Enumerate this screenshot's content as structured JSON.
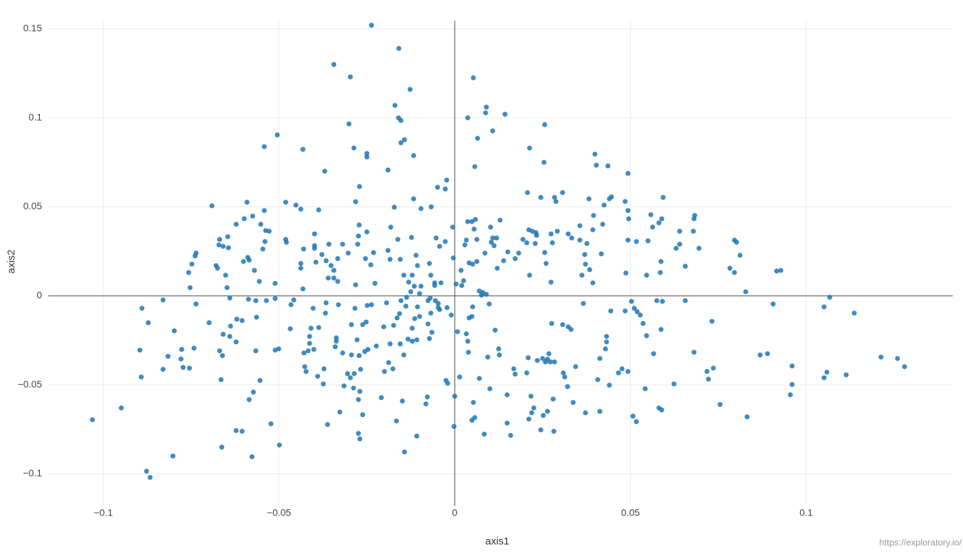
{
  "chart_data": {
    "type": "scatter",
    "x_label": "axis1",
    "y_label": "axis2",
    "watermark": "https://exploratory.io/",
    "color": "#1f77b4",
    "grid": true,
    "zeroline": true,
    "xlim": [
      -0.1157,
      0.1417
    ],
    "ylim": [
      -0.118,
      0.1546
    ],
    "xticks": [
      {
        "value": -0.1,
        "label": "−0.1"
      },
      {
        "value": -0.05,
        "label": "−0.05"
      },
      0,
      0.05,
      0.1
    ],
    "yticks": [
      {
        "value": -0.1,
        "label": "−0.1"
      },
      {
        "value": -0.05,
        "label": "−0.05"
      },
      0,
      0.05,
      0.1,
      0.15
    ],
    "x": [
      -0.1031,
      -0.0949,
      -0.0877,
      -0.0867,
      -0.0802,
      -0.0237,
      -0.0159,
      -0.0344,
      -0.0297,
      -0.0127,
      0.0053,
      -0.017,
      -0.016,
      -0.0153,
      0.0088,
      0.009,
      0.0143,
      0.0108,
      0.0037,
      -0.0301,
      0.0256,
      -0.0505,
      -0.0542,
      -0.0432,
      -0.0287,
      -0.025,
      -0.025,
      -0.0153,
      -0.0143,
      -0.0117,
      0.0065,
      0.0213,
      0.0254,
      0.0399,
      0.0057,
      0.0403,
      0.0436,
      -0.019,
      -0.037,
      0.0493,
      -0.0271,
      -0.0023,
      -0.0049,
      -0.0027,
      -0.0591,
      -0.0691,
      -0.0481,
      -0.0452,
      -0.0438,
      -0.0387,
      -0.0282,
      -0.0172,
      -0.0117,
      -0.0096,
      -0.0067,
      0.0207,
      0.0245,
      0.0284,
      0.0307,
      0.0288,
      0.0382,
      0.0446,
      0.044,
      0.0425,
      0.0485,
      0.0493,
      0.0558,
      0.0593,
      -0.0542,
      -0.0575,
      -0.0599,
      -0.0622,
      -0.0552,
      -0.0669,
      -0.0646,
      -0.0671,
      -0.0659,
      -0.0644,
      -0.0679,
      -0.0675,
      -0.0736,
      -0.0739,
      -0.0748,
      -0.0757,
      -0.0753,
      -0.0652,
      -0.0648,
      -0.0589,
      -0.0601,
      -0.0585,
      -0.057,
      -0.0556,
      -0.0538,
      -0.0528,
      -0.054,
      -0.0546,
      -0.0481,
      -0.0479,
      -0.043,
      -0.0399,
      -0.0399,
      -0.0399,
      -0.0438,
      -0.0438,
      -0.0395,
      -0.0432,
      -0.0378,
      -0.0358,
      -0.0319,
      -0.0366,
      -0.0352,
      -0.0344,
      -0.036,
      -0.0344,
      -0.0333,
      -0.0282,
      -0.0333,
      -0.0303,
      -0.0276,
      -0.0272,
      -0.0274,
      -0.025,
      -0.0254,
      -0.0231,
      -0.0239,
      -0.0227,
      -0.0182,
      -0.0162,
      -0.0184,
      -0.019,
      -0.0155,
      -0.011,
      -0.0106,
      -0.0123,
      -0.0121,
      -0.0145,
      -0.0131,
      -0.0053,
      -0.0027,
      -0.0043,
      -0.0072,
      -0.0068,
      -0.0057,
      -0.0057,
      -0.0039,
      -0.0004,
      -0.0006,
      0.0004,
      0.002,
      0.0029,
      0.0033,
      0.0037,
      0.0049,
      0.0059,
      0.0055,
      0.0018,
      0.0025,
      0.0041,
      0.0051,
      0.0063,
      0.0063,
      0.0086,
      0.0102,
      0.0108,
      0.0104,
      0.0112,
      0.0129,
      0.0119,
      0.0121,
      0.0139,
      0.0151,
      0.0172,
      0.0182,
      0.0194,
      0.0205,
      0.0211,
      0.0221,
      0.0231,
      0.0233,
      0.0229,
      0.0213,
      0.0256,
      0.026,
      0.0274,
      0.0292,
      0.0278,
      0.0274,
      0.0323,
      0.0333,
      0.0356,
      0.0356,
      0.0376,
      0.037,
      0.0417,
      0.0372,
      0.0384,
      0.0362,
      0.0393,
      0.0395,
      0.0421,
      0.0393,
      0.0495,
      0.0493,
      0.0517,
      0.055,
      0.0563,
      0.0581,
      0.0589,
      0.064,
      0.0679,
      0.0683,
      0.0681,
      0.064,
      0.063,
      0.0695,
      0.0656,
      0.0487,
      0.0546,
      0.0585,
      0.0587,
      0.0783,
      0.0796,
      0.0796,
      0.0802,
      0.0812,
      0.0828,
      0.0916,
      0.0928,
      0.0906,
      0.1067,
      0.1051,
      0.1137,
      0.1213,
      0.126,
      0.128,
      0.1114,
      0.1059,
      0.1051,
      0.096,
      0.096,
      0.0955,
      0.0869,
      0.089,
      0.0832,
      0.0755,
      0.0732,
      0.0736,
      0.0718,
      0.0722,
      0.0681,
      0.0656,
      0.0591,
      0.0587,
      0.0575,
      0.0566,
      0.0546,
      0.0536,
      0.0528,
      0.0519,
      0.0511,
      0.0503,
      0.0485,
      0.0493,
      0.0476,
      0.0466,
      0.0517,
      0.0507,
      0.0542,
      0.0581,
      0.0589,
      0.0624,
      0.0444,
      0.0432,
      0.0432,
      0.0429,
      0.0413,
      0.0407,
      0.044,
      0.0413,
      0.0372,
      0.0337,
      0.0331,
      0.0307,
      0.0323,
      0.0309,
      0.0313,
      0.0344,
      0.0321,
      0.0366,
      0.0276,
      0.0268,
      0.0264,
      0.0272,
      0.0284,
      0.0258,
      0.025,
      0.0235,
      0.0209,
      0.0205,
      0.0217,
      0.0225,
      0.0219,
      0.0211,
      0.0252,
      0.0264,
      0.0245,
      0.028,
      0.0282,
      0.0159,
      0.0149,
      0.0149,
      0.0168,
      0.0172,
      0.01,
      0.0084,
      0.0049,
      0.0057,
      0.0053,
      0.007,
      0.0094,
      0.0125,
      0.0127,
      0.0115,
      0.0098,
      0.0076,
      0.009,
      0.008,
      0.007,
      0.0051,
      0.0049,
      0.0041,
      0.0037,
      0.0039,
      0.0033,
      0.0008,
      0.0014,
      0,
      -0.0002,
      -0.0025,
      -0.002,
      -0.001,
      -0.0022,
      -0.0047,
      -0.0043,
      -0.0047,
      -0.0055,
      -0.007,
      -0.0076,
      -0.01,
      -0.0106,
      -0.0096,
      -0.0115,
      -0.0125,
      -0.0137,
      -0.0153,
      -0.0139,
      -0.0114,
      -0.01,
      -0.0068,
      -0.0076,
      -0.0065,
      -0.0072,
      -0.0121,
      -0.0121,
      -0.0108,
      -0.0157,
      -0.0164,
      -0.0174,
      -0.0202,
      -0.0249,
      -0.0237,
      -0.0194,
      -0.0252,
      -0.0262,
      -0.0294,
      -0.0284,
      -0.0331,
      -0.0366,
      -0.0368,
      -0.0403,
      -0.0409,
      -0.0387,
      -0.0413,
      -0.0413,
      -0.0417,
      -0.0429,
      -0.0401,
      -0.0337,
      -0.0337,
      -0.034,
      -0.0319,
      -0.0294,
      -0.0278,
      -0.0272,
      -0.0256,
      -0.0247,
      -0.0223,
      -0.0184,
      -0.0155,
      -0.0133,
      -0.0145,
      -0.0188,
      -0.0176,
      -0.02,
      -0.0268,
      -0.0286,
      -0.0305,
      -0.0297,
      -0.0372,
      -0.039,
      -0.0427,
      -0.0423,
      -0.0374,
      -0.0315,
      -0.0288,
      -0.027,
      -0.0274,
      -0.0262,
      -0.0327,
      -0.0362,
      -0.0274,
      -0.027,
      -0.0209,
      -0.0166,
      -0.0149,
      -0.0108,
      -0.0143,
      -0.0082,
      -0.0078,
      -0.0499,
      -0.0523,
      -0.0577,
      -0.0605,
      -0.0622,
      -0.0663,
      -0.0585,
      -0.0573,
      -0.0554,
      -0.0566,
      -0.0511,
      -0.0501,
      -0.0468,
      -0.0564,
      -0.0566,
      -0.0587,
      -0.0536,
      -0.0511,
      -0.0511,
      -0.0466,
      -0.0458,
      -0.062,
      -0.0605,
      -0.0638,
      -0.0622,
      -0.064,
      -0.0659,
      -0.0669,
      -0.0661,
      -0.0665,
      -0.0699,
      -0.064,
      -0.0736,
      -0.083,
      -0.089,
      -0.0872,
      -0.0798,
      -0.0896,
      -0.0816,
      -0.0777,
      -0.0779,
      -0.0773,
      -0.0755,
      -0.0742,
      -0.083,
      -0.0892
    ],
    "values": [
      -0.0696,
      -0.063,
      -0.0985,
      -0.102,
      -0.09,
      0.152,
      0.139,
      0.13,
      0.123,
      0.116,
      0.1225,
      0.107,
      0.1,
      0.0985,
      0.1028,
      0.106,
      0.102,
      0.0927,
      0.1,
      0.0966,
      0.0962,
      0.0904,
      0.0838,
      0.0823,
      0.0831,
      0.08,
      0.078,
      0.086,
      0.0877,
      0.0788,
      0.0885,
      0.083,
      0.075,
      0.0796,
      0.0726,
      0.0734,
      0.073,
      0.0707,
      0.07,
      0.0688,
      0.0614,
      0.065,
      0.061,
      0.06,
      0.0526,
      0.0506,
      0.0526,
      0.051,
      0.0487,
      0.0483,
      0.0529,
      0.0498,
      0.0545,
      0.049,
      0.05,
      0.058,
      0.0553,
      0.0553,
      0.058,
      0.053,
      0.0545,
      0.0556,
      0.0545,
      0.051,
      0.053,
      0.0479,
      0.0456,
      0.0553,
      0.0479,
      0.0448,
      0.0433,
      0.0402,
      0.0402,
      0.0317,
      0.0332,
      0.0286,
      0.0278,
      0.027,
      0.017,
      0.0155,
      0.024,
      0.0224,
      0.0178,
      0.0131,
      0.0046,
      0.0116,
      0.0046,
      0.0216,
      0.0193,
      0.0201,
      0.0143,
      0.0081,
      0.0367,
      0.0363,
      0.0305,
      0.0263,
      0.0317,
      0.0301,
      0.0263,
      0.0348,
      0.0282,
      0.0267,
      0.0182,
      0.0155,
      0.0189,
      0.0039,
      0.0232,
      0.029,
      0.029,
      0.0197,
      0.017,
      0.0143,
      0.01,
      0.01,
      0.0081,
      0.0062,
      0.0209,
      0.024,
      0.029,
      0.0398,
      0.0336,
      0.0359,
      0.0209,
      0.0243,
      0.0174,
      0.007,
      0.0386,
      0.0317,
      0.0205,
      0.0255,
      0.0205,
      0.0228,
      0.017,
      0.0328,
      0.0116,
      0.0116,
      0.0077,
      0.0325,
      0.0305,
      0.0278,
      0.0182,
      0.0116,
      0.0073,
      0.0058,
      0.0073,
      0.0213,
      0.0386,
      0.0066,
      0.0058,
      0.0286,
      0.0313,
      0.0417,
      0.0417,
      0.0429,
      0.0375,
      0.0143,
      0.0085,
      0.0185,
      0.0178,
      0.0193,
      0.0317,
      0.024,
      0.0386,
      0.0325,
      0.0301,
      0.0282,
      0.0425,
      0.0325,
      0.0155,
      0.0197,
      0.0247,
      0.0209,
      0.024,
      0.0317,
      0.0298,
      0.0371,
      0.0363,
      0.0355,
      0.034,
      0.0294,
      0.0116,
      0.0243,
      0.0182,
      0.0348,
      0.0363,
      0.0298,
      0.0077,
      0.0348,
      0.0325,
      0.0394,
      0.0313,
      0.0294,
      0.0232,
      0.0236,
      0.0178,
      0.0147,
      0.0116,
      0.0073,
      0.0452,
      0.0402,
      0.0371,
      0.0433,
      0.0313,
      0.0305,
      0.0309,
      0.0386,
      0.041,
      0.0433,
      0.0363,
      0.0363,
      0.0452,
      0.0433,
      0.029,
      0.0267,
      0.0267,
      0.0166,
      0.0128,
      0.0116,
      0.0131,
      0.0193,
      0.0155,
      0.0131,
      0.0313,
      0.0301,
      0.0228,
      0.0023,
      0.0139,
      0.0143,
      -0.0046,
      -0.0008,
      -0.0062,
      -0.0097,
      -0.0344,
      -0.0352,
      -0.0398,
      -0.0444,
      -0.0429,
      -0.046,
      -0.0394,
      -0.0498,
      -0.0556,
      -0.0332,
      -0.0325,
      -0.068,
      -0.061,
      -0.0143,
      -0.0406,
      -0.0425,
      -0.0468,
      -0.0317,
      -0.0027,
      -0.0031,
      -0.0189,
      -0.0027,
      -0.0325,
      -0.0224,
      -0.0155,
      -0.0108,
      -0.0089,
      -0.007,
      -0.0031,
      -0.0085,
      -0.0425,
      -0.041,
      -0.0433,
      -0.0707,
      -0.0676,
      -0.0522,
      -0.063,
      -0.0641,
      -0.0495,
      -0.0085,
      -0.0228,
      -0.0259,
      -0.0298,
      -0.0352,
      -0.0471,
      -0.0502,
      -0.0649,
      -0.0657,
      -0.0599,
      -0.0189,
      -0.0162,
      -0.0174,
      -0.0433,
      -0.0456,
      -0.0398,
      -0.051,
      -0.0043,
      -0.0155,
      -0.0325,
      -0.0356,
      -0.0371,
      -0.0371,
      -0.0371,
      -0.0352,
      -0.0363,
      -0.0348,
      -0.0433,
      -0.0564,
      -0.063,
      -0.0657,
      -0.0692,
      -0.0672,
      -0.0649,
      -0.0753,
      -0.058,
      -0.0761,
      -0.0784,
      -0.0715,
      -0.0556,
      -0.041,
      -0.044,
      -0.0522,
      -0.0777,
      -0.0699,
      -0.0684,
      -0.0599,
      -0.0464,
      -0.0344,
      -0.0298,
      -0.0332,
      -0.0193,
      -0.0046,
      0.0004,
      0.0008,
      0.0019,
      0.0027,
      -0.0062,
      -0.0116,
      -0.0124,
      -0.0255,
      -0.0317,
      -0.0213,
      -0.0201,
      -0.0456,
      -0.0564,
      -0.0734,
      -0.0475,
      -0.0491,
      -0.0108,
      -0.0066,
      -0.0066,
      -0.0077,
      -0.0043,
      -0.0027,
      -0.0012,
      -0.0027,
      0.0012,
      -0.0062,
      0.0054,
      0.0054,
      0.0023,
      -0.0008,
      -0.0027,
      -0.0058,
      -0.0128,
      -0.0116,
      -0.0097,
      -0.0158,
      -0.0205,
      -0.024,
      -0.0182,
      -0.0255,
      -0.0247,
      -0.01,
      -0.0124,
      -0.0166,
      -0.0174,
      -0.0054,
      -0.005,
      -0.0039,
      -0.0147,
      -0.0162,
      -0.0162,
      -0.007,
      -0.005,
      -0.0039,
      -0.0097,
      -0.007,
      -0.0182,
      -0.0178,
      -0.0228,
      -0.0267,
      -0.0309,
      -0.0321,
      -0.0301,
      -0.0236,
      -0.0255,
      -0.0286,
      -0.0321,
      -0.0332,
      -0.0247,
      -0.0336,
      -0.0313,
      -0.0301,
      -0.0282,
      -0.027,
      -0.027,
      -0.0243,
      -0.0332,
      -0.0375,
      -0.041,
      -0.0425,
      -0.0413,
      -0.0437,
      -0.0437,
      -0.046,
      -0.041,
      -0.0452,
      -0.0398,
      -0.0425,
      -0.0495,
      -0.0506,
      -0.0518,
      -0.0537,
      -0.0583,
      -0.0668,
      -0.0653,
      -0.0723,
      -0.0773,
      -0.0804,
      -0.0572,
      -0.0703,
      -0.0591,
      -0.0788,
      -0.0877,
      -0.0607,
      -0.0568,
      -0.0838,
      -0.0719,
      -0.0904,
      -0.0761,
      -0.0757,
      -0.085,
      -0.0583,
      -0.0541,
      -0.0475,
      -0.0309,
      -0.0305,
      -0.0298,
      -0.0185,
      -0.012,
      -0.0027,
      -0.0019,
      -0.0027,
      -0.0015,
      0.007,
      -0.005,
      -0.0023,
      -0.0131,
      -0.0139,
      -0.017,
      -0.0259,
      -0.0228,
      -0.0216,
      -0.0309,
      -0.0336,
      -0.0471,
      -0.0151,
      -0.0012,
      -0.0046,
      -0.0023,
      -0.007,
      -0.0151,
      -0.0197,
      -0.0305,
      -0.034,
      -0.0301,
      -0.0355,
      -0.0402,
      -0.0406,
      -0.0294,
      -0.0413,
      -0.0456
    ]
  }
}
